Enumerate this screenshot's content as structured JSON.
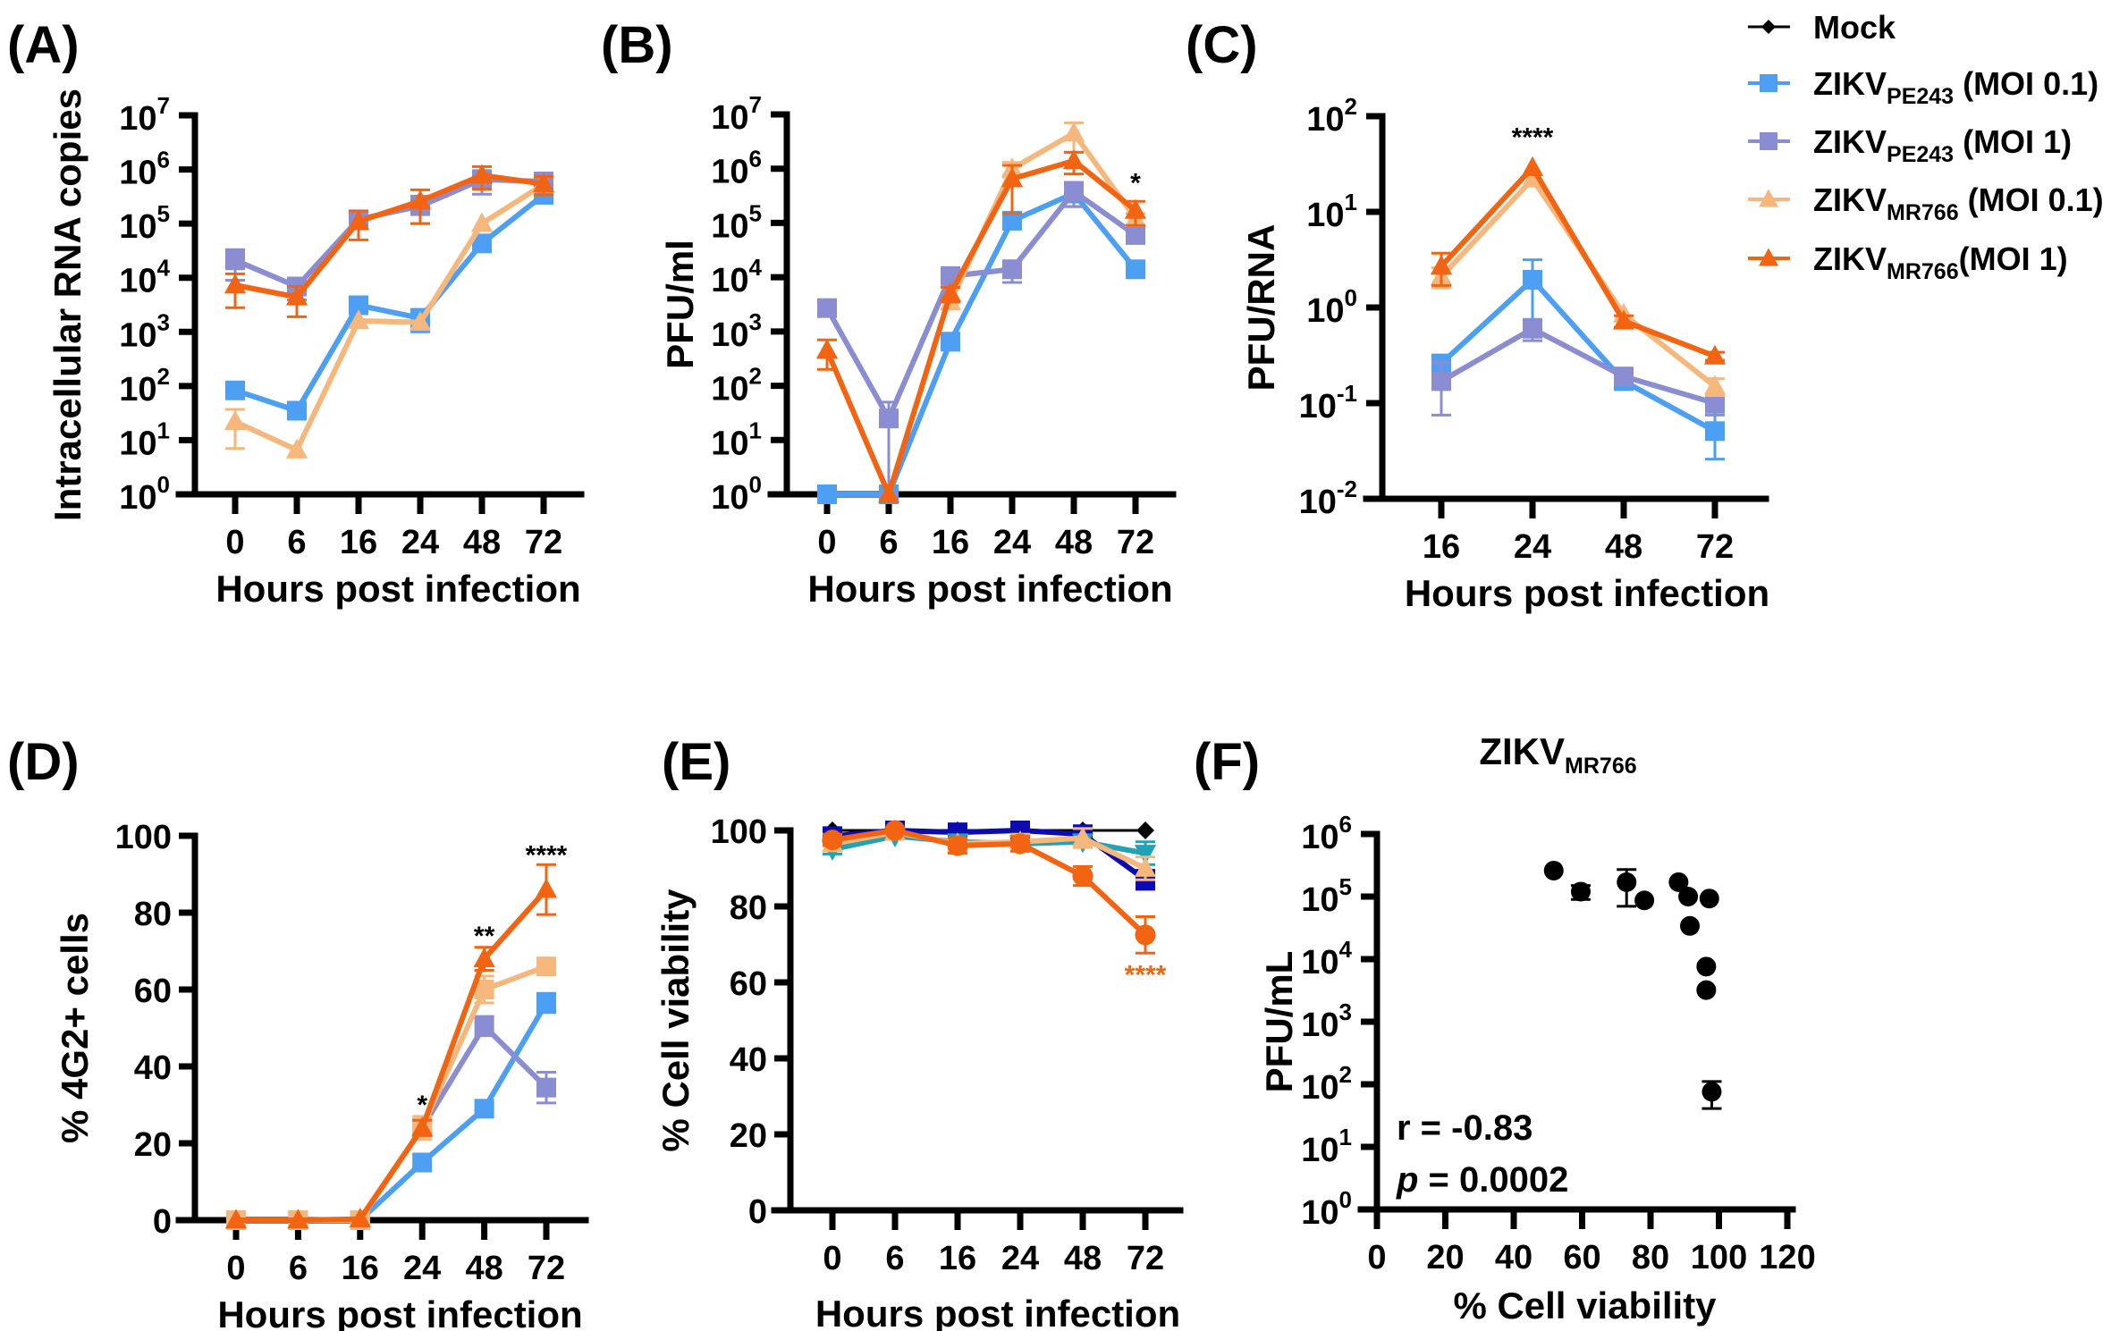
{
  "panel_labels": [
    "(A)",
    "(B)",
    "(C)",
    "(D)",
    "(E)",
    "(F)"
  ],
  "legend": {
    "items": [
      {
        "name": "Mock",
        "sub": "",
        "suffix": "",
        "color": "#000000",
        "marker": "diamond"
      },
      {
        "name": "ZIKV",
        "sub": "PE243",
        "suffix": " (MOI 0.1)",
        "color": "#4c9ff2",
        "marker": "square"
      },
      {
        "name": "ZIKV",
        "sub": "PE243",
        "suffix": " (MOI 1)",
        "color": "#8b8dd2",
        "marker": "square"
      },
      {
        "name": "ZIKV",
        "sub": "MR766",
        "suffix": " (MOI 0.1)",
        "color": "#f6b77c",
        "marker": "triangle"
      },
      {
        "name": "ZIKV",
        "sub": "MR766",
        "suffix": "(MOI 1)",
        "color": "#f26411",
        "marker": "triangle"
      }
    ]
  },
  "chart_data": [
    {
      "id": "A",
      "type": "line",
      "yscale": "log",
      "ylabel": "Intracellular RNA copies",
      "xlabel": "Hours post infection",
      "categories": [
        "0",
        "6",
        "16",
        "24",
        "48",
        "72"
      ],
      "ylim_exp": [
        0,
        7
      ],
      "annotations": [],
      "series": [
        {
          "name": "ZIKV PE243 (MOI 0.1)",
          "color": "#4c9ff2",
          "marker": "square",
          "values": [
            83,
            35,
            3100,
            1800,
            43000,
            340000
          ],
          "err": [
            0,
            0,
            0,
            800,
            0,
            0
          ]
        },
        {
          "name": "ZIKV PE243 (MOI 1)",
          "color": "#8b8dd2",
          "marker": "square",
          "values": [
            21000,
            6900,
            120000,
            210000,
            650000,
            600000
          ],
          "err": [
            12000,
            3000,
            40000,
            110000,
            300000,
            200000
          ]
        },
        {
          "name": "ZIKV MR766 (MOI 0.1)",
          "color": "#f6b77c",
          "marker": "triangle",
          "values": [
            22,
            6.6,
            1600,
            1500,
            100000,
            530000
          ],
          "err": [
            15,
            0,
            0,
            0,
            0,
            0
          ]
        },
        {
          "name": "ZIKV MR766 (MOI 1)",
          "color": "#f26411",
          "marker": "triangle",
          "values": [
            7300,
            4400,
            110000,
            260000,
            780000,
            540000
          ],
          "err": [
            4500,
            2500,
            60000,
            160000,
            350000,
            200000
          ]
        }
      ]
    },
    {
      "id": "B",
      "type": "line",
      "yscale": "log",
      "ylabel": "PFU/ml",
      "xlabel": "Hours post infection",
      "categories": [
        "0",
        "6",
        "16",
        "24",
        "48",
        "72"
      ],
      "ylim_exp": [
        0,
        7
      ],
      "annotations": [
        {
          "x_index": 5,
          "text": "*",
          "y": 550000,
          "color": "#000000"
        }
      ],
      "series": [
        {
          "name": "ZIKV PE243 (MOI 0.1)",
          "color": "#4c9ff2",
          "marker": "square",
          "values": [
            1,
            1,
            650,
            110000,
            350000,
            14000
          ],
          "err": [
            0,
            0,
            0,
            0,
            150000,
            3000
          ]
        },
        {
          "name": "ZIKV PE243 (MOI 1)",
          "color": "#8b8dd2",
          "marker": "square",
          "values": [
            2700,
            25,
            10500,
            14000,
            380000,
            60000
          ],
          "err": [
            0,
            25,
            0,
            6000,
            180000,
            0
          ]
        },
        {
          "name": "ZIKV MR766 (MOI 0.1)",
          "color": "#f6b77c",
          "marker": "triangle",
          "values": [
            null,
            null,
            3500,
            1000000,
            4500000,
            120000
          ],
          "err": [
            0,
            0,
            0,
            300000,
            2500000,
            30000
          ]
        },
        {
          "name": "ZIKV MR766 (MOI 1)",
          "color": "#f26411",
          "marker": "triangle",
          "values": [
            450,
            1,
            5000,
            650000,
            1400000,
            170000
          ],
          "err": [
            250,
            0,
            1500,
            500000,
            600000,
            80000
          ]
        }
      ]
    },
    {
      "id": "C",
      "type": "line",
      "yscale": "log",
      "ylabel": "PFU/RNA",
      "xlabel": "Hours post infection",
      "categories": [
        "16",
        "24",
        "48",
        "72"
      ],
      "ylim_exp": [
        -2,
        2
      ],
      "annotations": [
        {
          "x_index": 1,
          "text": "****",
          "y": 60,
          "color": "#000000"
        }
      ],
      "series": [
        {
          "name": "ZIKV PE243 (MOI 0.1)",
          "color": "#4c9ff2",
          "marker": "square",
          "values": [
            0.26,
            1.95,
            0.17,
            0.051
          ],
          "err": [
            0,
            1.2,
            0,
            0.025
          ]
        },
        {
          "name": "ZIKV PE243 (MOI 1)",
          "color": "#8b8dd2",
          "marker": "square",
          "values": [
            0.17,
            0.6,
            0.19,
            0.1
          ],
          "err": [
            0.095,
            0.15,
            0,
            0.025
          ]
        },
        {
          "name": "ZIKV MR766 (MOI 0.1)",
          "color": "#f6b77c",
          "marker": "triangle",
          "values": [
            2.1,
            22,
            0.85,
            0.15
          ],
          "err": [
            0.5,
            0,
            0,
            0.03
          ]
        },
        {
          "name": "ZIKV MR766 (MOI 1)",
          "color": "#f26411",
          "marker": "triangle",
          "values": [
            2.7,
            29,
            0.72,
            0.31
          ],
          "err": [
            1.0,
            0,
            0.1,
            0.03
          ]
        }
      ]
    },
    {
      "id": "D",
      "type": "line",
      "yscale": "linear",
      "ylabel": "% 4G2+ cells",
      "xlabel": "Hours post infection",
      "categories": [
        "0",
        "6",
        "16",
        "24",
        "48",
        "72"
      ],
      "ylim": [
        0,
        100
      ],
      "yticks": [
        0,
        20,
        40,
        60,
        80,
        100
      ],
      "annotations": [
        {
          "x_index": 3,
          "text": "*",
          "y": 30,
          "color": "#000000"
        },
        {
          "x_index": 4,
          "text": "**",
          "y": 74,
          "color": "#000000"
        },
        {
          "x_index": 5,
          "text": "****",
          "y": 95,
          "color": "#000000"
        }
      ],
      "series": [
        {
          "name": "ZIKV PE243 (MOI 0.1)",
          "color": "#4c9ff2",
          "marker": "square",
          "values": [
            0,
            0,
            0,
            15,
            29,
            56.5
          ],
          "err": [
            0,
            0,
            0,
            0,
            0,
            2.5
          ]
        },
        {
          "name": "ZIKV PE243 (MOI 1)",
          "color": "#8b8dd2",
          "marker": "square",
          "values": [
            0,
            0,
            0,
            24,
            50.5,
            34.5
          ],
          "err": [
            0,
            0,
            0,
            0,
            2.5,
            4
          ]
        },
        {
          "name": "ZIKV MR766 (MOI 0.1)",
          "color": "#f6b77c",
          "marker": "square",
          "values": [
            0,
            0,
            0,
            24,
            60,
            66
          ],
          "err": [
            0,
            0,
            0,
            3,
            3.5,
            0
          ]
        },
        {
          "name": "ZIKV MR766 (MOI 1)",
          "color": "#f26411",
          "marker": "triangle",
          "values": [
            0,
            0,
            0.3,
            24,
            68,
            86
          ],
          "err": [
            0,
            0,
            0,
            2,
            3,
            6.5
          ]
        }
      ]
    },
    {
      "id": "E",
      "type": "line",
      "yscale": "linear",
      "ylabel": "% Cell viability",
      "xlabel": "Hours post infection",
      "categories": [
        "0",
        "6",
        "16",
        "24",
        "48",
        "72"
      ],
      "ylim": [
        0,
        100
      ],
      "yticks": [
        0,
        20,
        40,
        60,
        80,
        100
      ],
      "annotations": [
        {
          "x_index": 5,
          "text": "****",
          "y": 62,
          "color": "#f26411"
        }
      ],
      "series": [
        {
          "name": "Mock",
          "color": "#000000",
          "marker": "diamond",
          "thin": true,
          "values": [
            100,
            100,
            100,
            100,
            100,
            100
          ],
          "err": [
            0,
            0,
            0,
            0,
            0,
            0
          ]
        },
        {
          "name": "ZIKV PE243 (MOI 0.1)",
          "color": "#0b0bb0",
          "marker": "square",
          "values": [
            98.5,
            100,
            99.5,
            100,
            99,
            87
          ],
          "err": [
            0,
            0,
            0,
            0,
            0,
            2.5
          ]
        },
        {
          "name": "ZIKV PE243 (MOI 1)",
          "color": "#22a3b5",
          "marker": "triangle-down",
          "values": [
            95,
            98.5,
            97,
            96.5,
            97,
            94
          ],
          "err": [
            1.2,
            0,
            0,
            0,
            0,
            3
          ]
        },
        {
          "name": "ZIKV MR766 (MOI 0.1)",
          "color": "#f6b77c",
          "marker": "triangle",
          "values": [
            96.5,
            99.5,
            96.5,
            97,
            98,
            90
          ],
          "err": [
            0,
            0,
            0,
            2,
            2.5,
            3
          ]
        },
        {
          "name": "ZIKV MR766 (MOI 1)",
          "color": "#f26411",
          "marker": "circle",
          "values": [
            97.5,
            100,
            96,
            96.5,
            88,
            72.5
          ],
          "err": [
            1.5,
            0,
            2,
            2,
            2.5,
            4.8
          ]
        }
      ]
    },
    {
      "id": "F",
      "type": "scatter",
      "title": "ZIKV",
      "title_sub": "MR766",
      "xlabel": "% Cell viability",
      "ylabel": "PFU/mL",
      "xlim": [
        0,
        120
      ],
      "xticks": [
        0,
        20,
        40,
        60,
        80,
        100,
        120
      ],
      "yscale": "log",
      "ylim_exp": [
        0,
        6
      ],
      "color": "#000000",
      "points": [
        {
          "x": 51.7,
          "y": 260000,
          "err": 0
        },
        {
          "x": 59.6,
          "y": 120000,
          "err": 30000
        },
        {
          "x": 73,
          "y": 170000,
          "err": 100000
        },
        {
          "x": 78.2,
          "y": 87000,
          "err": 0
        },
        {
          "x": 88.2,
          "y": 170000,
          "err": 0
        },
        {
          "x": 91,
          "y": 100000,
          "err": 0
        },
        {
          "x": 97.2,
          "y": 93000,
          "err": 0
        },
        {
          "x": 91.5,
          "y": 34000,
          "err": 0
        },
        {
          "x": 96.3,
          "y": 7600,
          "err": 0
        },
        {
          "x": 96.3,
          "y": 3200,
          "err": 0
        },
        {
          "x": 97.9,
          "y": 76,
          "err": 35
        }
      ],
      "stats": {
        "r_label": "r = -0.83",
        "p_prefix": "p",
        "p_label": " = 0.0002"
      }
    }
  ]
}
